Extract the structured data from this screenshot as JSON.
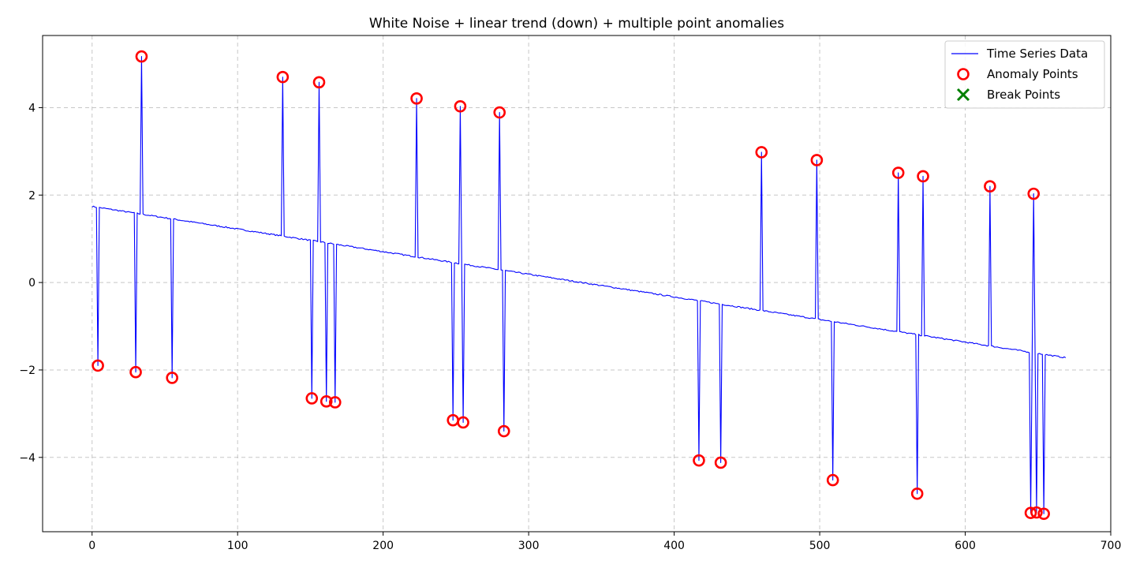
{
  "chart_data": {
    "type": "line",
    "title": "White Noise + linear trend (down) + multiple point anomalies",
    "xlabel": "",
    "ylabel": "",
    "xlim": [
      -34,
      700
    ],
    "ylim": [
      -5.7,
      5.65
    ],
    "x_ticks": [
      0,
      100,
      200,
      300,
      400,
      500,
      600,
      700
    ],
    "y_ticks": [
      -4,
      -2,
      0,
      2,
      4
    ],
    "x_tick_labels": [
      "0",
      "100",
      "200",
      "300",
      "400",
      "500",
      "600",
      "700"
    ],
    "y_tick_labels": [
      "−4",
      "−2",
      "0",
      "2",
      "4"
    ],
    "grid": true,
    "legend_position": "top-right",
    "trend": {
      "start_x": 0,
      "start_y": 1.74,
      "end_x": 669,
      "end_y": -1.72,
      "noise_amplitude": 0.015
    },
    "series": [
      {
        "name": "Time Series Data",
        "kind": "line",
        "color": "#0000ff"
      },
      {
        "name": "Anomaly Points",
        "kind": "scatter",
        "marker": "circle-open",
        "color": "#ff0000",
        "points": [
          {
            "x": 4,
            "y": -1.9
          },
          {
            "x": 30,
            "y": -2.05
          },
          {
            "x": 34,
            "y": 5.17
          },
          {
            "x": 55,
            "y": -2.18
          },
          {
            "x": 131,
            "y": 4.7
          },
          {
            "x": 151,
            "y": -2.65
          },
          {
            "x": 156,
            "y": 4.58
          },
          {
            "x": 161,
            "y": -2.72
          },
          {
            "x": 167,
            "y": -2.74
          },
          {
            "x": 223,
            "y": 4.21
          },
          {
            "x": 248,
            "y": -3.15
          },
          {
            "x": 253,
            "y": 4.03
          },
          {
            "x": 255,
            "y": -3.2
          },
          {
            "x": 280,
            "y": 3.89
          },
          {
            "x": 283,
            "y": -3.4
          },
          {
            "x": 417,
            "y": -4.07
          },
          {
            "x": 432,
            "y": -4.12
          },
          {
            "x": 460,
            "y": 2.98
          },
          {
            "x": 498,
            "y": 2.8
          },
          {
            "x": 509,
            "y": -4.52
          },
          {
            "x": 554,
            "y": 2.51
          },
          {
            "x": 567,
            "y": -4.83
          },
          {
            "x": 571,
            "y": 2.43
          },
          {
            "x": 617,
            "y": 2.2
          },
          {
            "x": 645,
            "y": -5.27
          },
          {
            "x": 647,
            "y": 2.03
          },
          {
            "x": 649,
            "y": -5.26
          },
          {
            "x": 654,
            "y": -5.29
          }
        ]
      },
      {
        "name": "Break Points",
        "kind": "scatter",
        "marker": "x",
        "color": "#008000",
        "points": []
      }
    ]
  }
}
